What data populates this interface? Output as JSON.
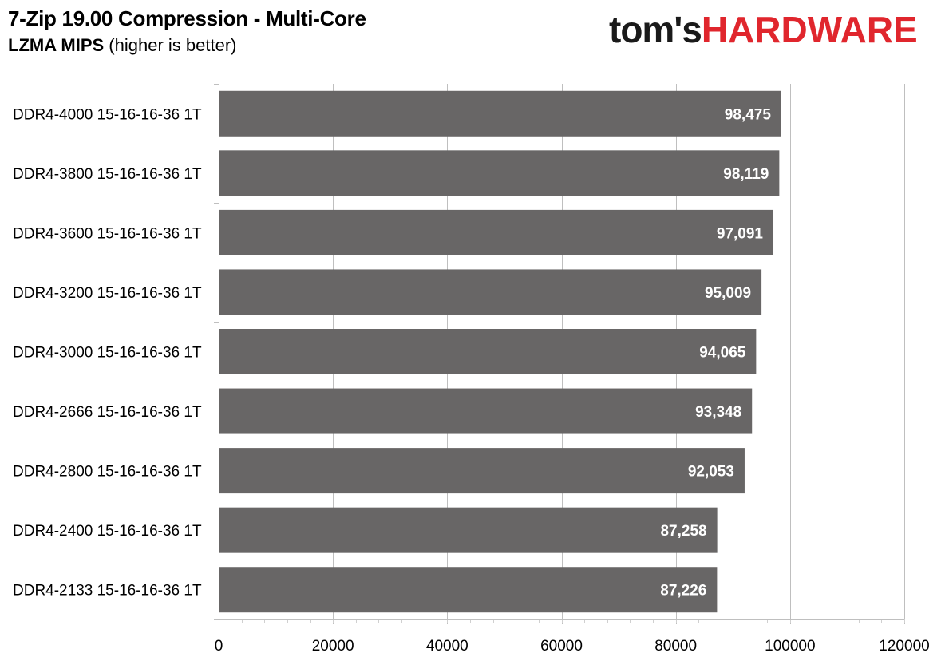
{
  "header": {
    "title": "7-Zip 19.00 Compression - Multi-Core",
    "subtitle_bold": "LZMA MIPS",
    "subtitle_rest": " (higher is better)"
  },
  "logo": {
    "brand": "tom's",
    "accent": "HARDWARE",
    "accent_color": "#e0262d"
  },
  "chart_data": {
    "type": "bar",
    "orientation": "horizontal",
    "title": "7-Zip 19.00 Compression - Multi-Core",
    "subtitle": "LZMA MIPS (higher is better)",
    "categories": [
      "DDR4-4000 15-16-16-36 1T",
      "DDR4-3800 15-16-16-36 1T",
      "DDR4-3600 15-16-16-36 1T",
      "DDR4-3200 15-16-16-36 1T",
      "DDR4-3000 15-16-16-36 1T",
      "DDR4-2666 15-16-16-36 1T",
      "DDR4-2800 15-16-16-36 1T",
      "DDR4-2400 15-16-16-36 1T",
      "DDR4-2133 15-16-16-36 1T"
    ],
    "values": [
      98475,
      98119,
      97091,
      95009,
      94065,
      93348,
      92053,
      87258,
      87226
    ],
    "value_labels": [
      "98,475",
      "98,119",
      "97,091",
      "95,009",
      "94,065",
      "93,348",
      "92,053",
      "87,258",
      "87,226"
    ],
    "xlim": [
      0,
      120000
    ],
    "xticks": [
      "0",
      "20000",
      "40000",
      "60000",
      "80000",
      "100000",
      "120000"
    ],
    "xlabel": "",
    "ylabel": "",
    "grid": true,
    "legend": "none",
    "bar_color": "#686666",
    "label_color": "#ffffff"
  }
}
